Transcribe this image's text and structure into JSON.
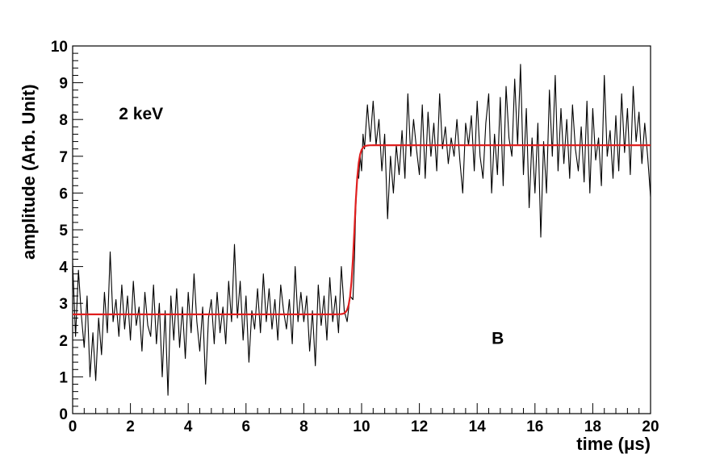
{
  "chart_data": {
    "type": "line",
    "xlabel": "time (μs)",
    "ylabel": "amplitude (Arb. Unit)",
    "xlim": [
      0,
      20
    ],
    "ylim": [
      0,
      10
    ],
    "x_ticks": [
      "0",
      "2",
      "4",
      "6",
      "8",
      "10",
      "12",
      "14",
      "16",
      "18",
      "20"
    ],
    "y_ticks": [
      "0",
      "1",
      "2",
      "3",
      "4",
      "5",
      "6",
      "7",
      "8",
      "9",
      "10"
    ],
    "grid": false,
    "annotations": [
      {
        "text": "2 keV",
        "x": 1.6,
        "y": 8.0
      },
      {
        "text": "B",
        "x": 14.5,
        "y": 1.9
      }
    ],
    "series": [
      {
        "color": "#000000",
        "kind": "noisy-waveform",
        "points": [
          [
            0.0,
            4.1
          ],
          [
            0.1,
            2.1
          ],
          [
            0.2,
            3.9
          ],
          [
            0.3,
            2.7
          ],
          [
            0.4,
            1.8
          ],
          [
            0.5,
            3.2
          ],
          [
            0.6,
            1.0
          ],
          [
            0.7,
            2.2
          ],
          [
            0.8,
            0.9
          ],
          [
            0.9,
            2.6
          ],
          [
            1.0,
            1.6
          ],
          [
            1.1,
            3.3
          ],
          [
            1.2,
            2.2
          ],
          [
            1.3,
            4.4
          ],
          [
            1.4,
            2.5
          ],
          [
            1.5,
            3.1
          ],
          [
            1.6,
            2.1
          ],
          [
            1.7,
            3.5
          ],
          [
            1.8,
            2.3
          ],
          [
            1.9,
            3.2
          ],
          [
            2.0,
            2.0
          ],
          [
            2.1,
            3.6
          ],
          [
            2.2,
            2.4
          ],
          [
            2.3,
            2.9
          ],
          [
            2.4,
            1.7
          ],
          [
            2.5,
            3.3
          ],
          [
            2.6,
            2.4
          ],
          [
            2.7,
            2.1
          ],
          [
            2.8,
            3.5
          ],
          [
            2.9,
            1.9
          ],
          [
            3.0,
            3.0
          ],
          [
            3.1,
            1.0
          ],
          [
            3.2,
            2.8
          ],
          [
            3.3,
            0.5
          ],
          [
            3.4,
            3.2
          ],
          [
            3.5,
            2.0
          ],
          [
            3.6,
            3.4
          ],
          [
            3.7,
            1.8
          ],
          [
            3.8,
            2.9
          ],
          [
            3.9,
            1.5
          ],
          [
            4.0,
            3.3
          ],
          [
            4.1,
            2.2
          ],
          [
            4.2,
            3.8
          ],
          [
            4.3,
            2.5
          ],
          [
            4.4,
            1.7
          ],
          [
            4.5,
            2.9
          ],
          [
            4.6,
            0.8
          ],
          [
            4.7,
            2.6
          ],
          [
            4.8,
            3.1
          ],
          [
            4.9,
            1.9
          ],
          [
            5.0,
            3.3
          ],
          [
            5.1,
            2.2
          ],
          [
            5.2,
            2.9
          ],
          [
            5.3,
            1.9
          ],
          [
            5.4,
            3.6
          ],
          [
            5.5,
            2.5
          ],
          [
            5.6,
            4.6
          ],
          [
            5.7,
            2.6
          ],
          [
            5.8,
            3.6
          ],
          [
            5.9,
            2.0
          ],
          [
            6.0,
            3.2
          ],
          [
            6.1,
            1.4
          ],
          [
            6.2,
            2.8
          ],
          [
            6.3,
            2.3
          ],
          [
            6.4,
            3.4
          ],
          [
            6.5,
            2.2
          ],
          [
            6.6,
            3.8
          ],
          [
            6.7,
            2.5
          ],
          [
            6.8,
            3.4
          ],
          [
            6.9,
            2.3
          ],
          [
            7.0,
            3.1
          ],
          [
            7.1,
            2.0
          ],
          [
            7.2,
            3.5
          ],
          [
            7.3,
            2.8
          ],
          [
            7.4,
            2.3
          ],
          [
            7.5,
            3.1
          ],
          [
            7.6,
            1.9
          ],
          [
            7.7,
            4.0
          ],
          [
            7.8,
            2.5
          ],
          [
            7.9,
            3.3
          ],
          [
            8.0,
            2.5
          ],
          [
            8.1,
            3.2
          ],
          [
            8.2,
            1.7
          ],
          [
            8.3,
            2.8
          ],
          [
            8.4,
            1.3
          ],
          [
            8.5,
            3.5
          ],
          [
            8.6,
            2.4
          ],
          [
            8.7,
            3.2
          ],
          [
            8.8,
            2.0
          ],
          [
            8.9,
            3.7
          ],
          [
            9.0,
            2.5
          ],
          [
            9.1,
            3.2
          ],
          [
            9.2,
            2.2
          ],
          [
            9.3,
            4.0
          ],
          [
            9.4,
            2.8
          ],
          [
            9.5,
            2.5
          ],
          [
            9.6,
            3.2
          ],
          [
            9.7,
            3.1
          ],
          [
            9.75,
            4.2
          ],
          [
            9.8,
            5.6
          ],
          [
            9.85,
            6.5
          ],
          [
            9.9,
            6.4
          ],
          [
            9.95,
            7.0
          ],
          [
            10.0,
            6.6
          ],
          [
            10.05,
            7.6
          ],
          [
            10.1,
            7.2
          ],
          [
            10.2,
            8.4
          ],
          [
            10.3,
            7.4
          ],
          [
            10.4,
            8.5
          ],
          [
            10.5,
            7.3
          ],
          [
            10.6,
            8.0
          ],
          [
            10.7,
            6.6
          ],
          [
            10.8,
            7.6
          ],
          [
            10.9,
            5.3
          ],
          [
            11.0,
            7.0
          ],
          [
            11.1,
            6.0
          ],
          [
            11.2,
            7.3
          ],
          [
            11.3,
            6.5
          ],
          [
            11.4,
            7.7
          ],
          [
            11.5,
            6.4
          ],
          [
            11.6,
            8.7
          ],
          [
            11.7,
            7.0
          ],
          [
            11.8,
            8.0
          ],
          [
            11.9,
            7.2
          ],
          [
            12.0,
            6.5
          ],
          [
            12.1,
            8.4
          ],
          [
            12.2,
            6.4
          ],
          [
            12.3,
            8.2
          ],
          [
            12.4,
            7.0
          ],
          [
            12.5,
            7.9
          ],
          [
            12.6,
            6.6
          ],
          [
            12.7,
            8.7
          ],
          [
            12.8,
            7.2
          ],
          [
            12.9,
            7.8
          ],
          [
            13.0,
            6.8
          ],
          [
            13.1,
            7.5
          ],
          [
            13.2,
            7.0
          ],
          [
            13.3,
            8.0
          ],
          [
            13.4,
            6.9
          ],
          [
            13.5,
            6.0
          ],
          [
            13.6,
            7.9
          ],
          [
            13.7,
            7.3
          ],
          [
            13.8,
            8.1
          ],
          [
            13.9,
            6.6
          ],
          [
            14.0,
            8.5
          ],
          [
            14.1,
            7.0
          ],
          [
            14.2,
            6.4
          ],
          [
            14.3,
            7.9
          ],
          [
            14.4,
            8.7
          ],
          [
            14.5,
            6.0
          ],
          [
            14.6,
            7.6
          ],
          [
            14.7,
            6.5
          ],
          [
            14.8,
            8.6
          ],
          [
            14.9,
            6.2
          ],
          [
            15.0,
            8.9
          ],
          [
            15.1,
            7.5
          ],
          [
            15.2,
            7.0
          ],
          [
            15.3,
            9.1
          ],
          [
            15.4,
            7.3
          ],
          [
            15.5,
            9.5
          ],
          [
            15.6,
            6.5
          ],
          [
            15.7,
            8.3
          ],
          [
            15.8,
            5.6
          ],
          [
            15.9,
            7.5
          ],
          [
            16.0,
            6.0
          ],
          [
            16.1,
            7.9
          ],
          [
            16.2,
            4.8
          ],
          [
            16.3,
            7.4
          ],
          [
            16.4,
            6.0
          ],
          [
            16.5,
            8.8
          ],
          [
            16.6,
            7.0
          ],
          [
            16.7,
            9.2
          ],
          [
            16.8,
            6.6
          ],
          [
            16.9,
            8.3
          ],
          [
            17.0,
            6.8
          ],
          [
            17.1,
            8.0
          ],
          [
            17.2,
            6.4
          ],
          [
            17.3,
            8.4
          ],
          [
            17.4,
            7.2
          ],
          [
            17.5,
            6.6
          ],
          [
            17.6,
            7.8
          ],
          [
            17.7,
            6.3
          ],
          [
            17.8,
            8.5
          ],
          [
            17.9,
            6.0
          ],
          [
            18.0,
            8.3
          ],
          [
            18.1,
            6.9
          ],
          [
            18.2,
            7.5
          ],
          [
            18.3,
            6.2
          ],
          [
            18.4,
            9.2
          ],
          [
            18.5,
            7.0
          ],
          [
            18.6,
            7.7
          ],
          [
            18.7,
            6.4
          ],
          [
            18.8,
            8.1
          ],
          [
            18.9,
            6.6
          ],
          [
            19.0,
            8.7
          ],
          [
            19.1,
            7.1
          ],
          [
            19.2,
            8.3
          ],
          [
            19.3,
            6.5
          ],
          [
            19.4,
            8.9
          ],
          [
            19.5,
            7.4
          ],
          [
            19.6,
            8.2
          ],
          [
            19.7,
            6.8
          ],
          [
            19.8,
            7.9
          ],
          [
            19.9,
            7.0
          ],
          [
            20.0,
            5.9
          ]
        ]
      },
      {
        "color": "#e01f1f",
        "kind": "fit",
        "baseline": 2.7,
        "plateau": 7.3,
        "step_center": 9.75,
        "step_width": 0.07
      }
    ]
  }
}
